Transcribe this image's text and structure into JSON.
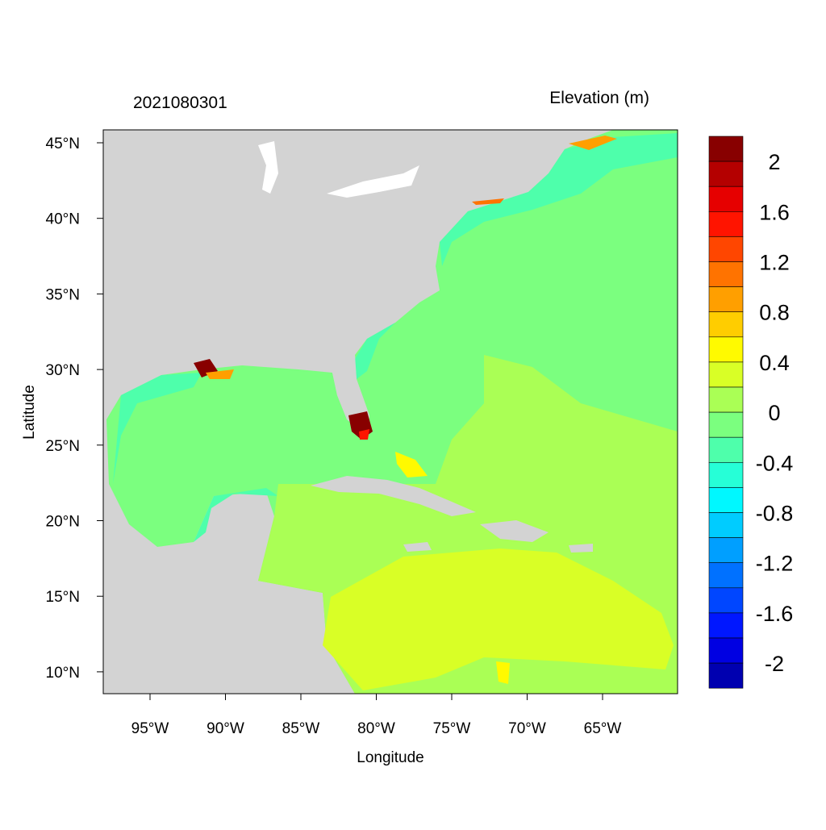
{
  "title_left": "2021080301",
  "title_right": "Elevation (m)",
  "xlabel": "Longitude",
  "ylabel": "Latitude",
  "x_ticks": [
    "95°W",
    "90°W",
    "85°W",
    "80°W",
    "75°W",
    "70°W",
    "65°W"
  ],
  "x_tick_values": [
    -95,
    -90,
    -85,
    -80,
    -75,
    -70,
    -65
  ],
  "y_ticks": [
    "45°N",
    "40°N",
    "35°N",
    "30°N",
    "25°N",
    "20°N",
    "15°N",
    "10°N"
  ],
  "y_tick_values": [
    45,
    40,
    35,
    30,
    25,
    20,
    15,
    10
  ],
  "colors": {
    "land": "#D3D3D3",
    "frame": "#000000"
  },
  "colorbar": {
    "labels": [
      "2",
      "1.6",
      "1.2",
      "0.8",
      "0.4",
      "0",
      "-0.4",
      "-0.8",
      "-1.2",
      "-1.6",
      "-2"
    ],
    "levels": [
      2,
      1.8,
      1.6,
      1.4,
      1.2,
      1.0,
      0.8,
      0.6,
      0.4,
      0.2,
      0,
      -0.2,
      -0.4,
      -0.6,
      -0.8,
      -1.0,
      -1.2,
      -1.4,
      -1.6,
      -1.8,
      -2
    ],
    "colors": [
      "#880000",
      "#B40000",
      "#E60000",
      "#FF1400",
      "#FF4600",
      "#FF7300",
      "#FF9F00",
      "#FFCD00",
      "#FFFA00",
      "#D9FF26",
      "#AAFF55",
      "#7BFF7F",
      "#4EFFAB",
      "#26FFD7",
      "#00F8FF",
      "#00CCFF",
      "#009FFF",
      "#0071FF",
      "#0046FF",
      "#0017FF",
      "#0000E2",
      "#0000B0"
    ]
  }
}
